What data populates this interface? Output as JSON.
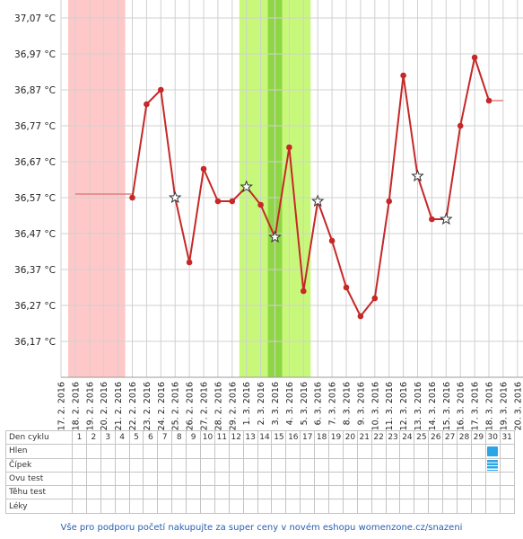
{
  "chart_data": {
    "type": "line",
    "y_unit_suffix": "°C",
    "ylim": [
      36.07,
      37.12
    ],
    "yticks": [
      37.07,
      36.97,
      36.87,
      36.77,
      36.67,
      36.57,
      36.47,
      36.37,
      36.27,
      36.17
    ],
    "ytick_labels": [
      "37,07 °C",
      "36,97 °C",
      "36,87 °C",
      "36,77 °C",
      "36,67 °C",
      "36,57 °C",
      "36,47 °C",
      "36,37 °C",
      "36,27 °C",
      "36,17 °C"
    ],
    "x": [
      "17. 2. 2016",
      "18. 2. 2016",
      "19. 2. 2016",
      "20. 2. 2016",
      "21. 2. 2016",
      "22. 2. 2016",
      "23. 2. 2016",
      "24. 2. 2016",
      "25. 2. 2016",
      "26. 2. 2016",
      "27. 2. 2016",
      "28. 2. 2016",
      "29. 2. 2016",
      "1. 3. 2016",
      "2. 3. 2016",
      "3. 3. 2016",
      "4. 3. 2016",
      "5. 3. 2016",
      "6. 3. 2016",
      "7. 3. 2016",
      "8. 3. 2016",
      "9. 3. 2016",
      "10. 3. 2016",
      "11. 3. 2016",
      "12. 3. 2016",
      "13. 3. 2016",
      "14. 3. 2016",
      "15. 3. 2016",
      "16. 3. 2016",
      "17. 3. 2016",
      "18. 3. 2016",
      "19. 3. 2016",
      "20. 3. 2016"
    ],
    "series": [
      {
        "color": "#c62828",
        "points": [
          {
            "x": "22. 2. 2016",
            "y": 36.57,
            "marker": "dot"
          },
          {
            "x": "23. 2. 2016",
            "y": 36.83,
            "marker": "dot"
          },
          {
            "x": "24. 2. 2016",
            "y": 36.87,
            "marker": "dot"
          },
          {
            "x": "25. 2. 2016",
            "y": 36.57,
            "marker": "star"
          },
          {
            "x": "26. 2. 2016",
            "y": 36.39,
            "marker": "dot"
          },
          {
            "x": "27. 2. 2016",
            "y": 36.65,
            "marker": "dot"
          },
          {
            "x": "28. 2. 2016",
            "y": 36.56,
            "marker": "dot"
          },
          {
            "x": "29. 2. 2016",
            "y": 36.56,
            "marker": "dot"
          },
          {
            "x": "1. 3. 2016",
            "y": 36.6,
            "marker": "star"
          },
          {
            "x": "2. 3. 2016",
            "y": 36.55,
            "marker": "dot"
          },
          {
            "x": "3. 3. 2016",
            "y": 36.46,
            "marker": "star"
          },
          {
            "x": "4. 3. 2016",
            "y": 36.71,
            "marker": "dot"
          },
          {
            "x": "5. 3. 2016",
            "y": 36.31,
            "marker": "dot"
          },
          {
            "x": "6. 3. 2016",
            "y": 36.56,
            "marker": "star"
          },
          {
            "x": "7. 3. 2016",
            "y": 36.45,
            "marker": "dot"
          },
          {
            "x": "8. 3. 2016",
            "y": 36.32,
            "marker": "dot"
          },
          {
            "x": "9. 3. 2016",
            "y": 36.24,
            "marker": "dot"
          },
          {
            "x": "10. 3. 2016",
            "y": 36.29,
            "marker": "dot"
          },
          {
            "x": "11. 3. 2016",
            "y": 36.56,
            "marker": "dot"
          },
          {
            "x": "12. 3. 2016",
            "y": 36.91,
            "marker": "dot"
          },
          {
            "x": "13. 3. 2016",
            "y": 36.63,
            "marker": "star"
          },
          {
            "x": "14. 3. 2016",
            "y": 36.51,
            "marker": "dot"
          },
          {
            "x": "15. 3. 2016",
            "y": 36.51,
            "marker": "star"
          },
          {
            "x": "16. 3. 2016",
            "y": 36.77,
            "marker": "dot"
          },
          {
            "x": "17. 3. 2016",
            "y": 36.96,
            "marker": "dot"
          },
          {
            "x": "18. 3. 2016",
            "y": 36.84,
            "marker": "dot"
          }
        ]
      }
    ],
    "reference_lines": [
      {
        "from": "18. 2. 2016",
        "to": "22. 2. 2016",
        "y": 36.58,
        "color": "#e08080"
      },
      {
        "from": "18. 3. 2016",
        "to": "19. 3. 2016",
        "y": 36.84,
        "color": "#e08080"
      }
    ],
    "bands": [
      {
        "from": "18. 2. 2016",
        "to": "21. 2. 2016",
        "color": "#ffc8c8"
      },
      {
        "from": "1. 3. 2016",
        "to": "5. 3. 2016",
        "color": "#c8f87a"
      },
      {
        "from": "3. 3. 2016",
        "to": "3. 3. 2016",
        "color": "#8fd645"
      }
    ],
    "grid": true
  },
  "table": {
    "header_label": "Den cyklu",
    "days": [
      "1",
      "2",
      "3",
      "4",
      "5",
      "6",
      "7",
      "8",
      "9",
      "10",
      "11",
      "12",
      "13",
      "14",
      "15",
      "16",
      "17",
      "18",
      "19",
      "20",
      "21",
      "22",
      "23",
      "24",
      "25",
      "26",
      "27",
      "28",
      "29",
      "30",
      "31"
    ],
    "rows": [
      {
        "label": "Hlen",
        "marks": [
          {
            "day": "30",
            "kind": "hlen"
          }
        ]
      },
      {
        "label": "Čípek",
        "marks": [
          {
            "day": "30",
            "kind": "cipek"
          }
        ]
      },
      {
        "label": "Ovu test",
        "marks": []
      },
      {
        "label": "Těhu test",
        "marks": []
      },
      {
        "label": "Léky",
        "marks": []
      }
    ]
  },
  "footer": {
    "text": "Vše pro podporu početí nakupujte za super ceny v novém eshopu womenzone.cz/snazeni"
  },
  "colors": {
    "line": "#c62828",
    "marker_fill": "#c62828",
    "star_stroke": "#333333",
    "grid": "#d0d0d0",
    "mark": "#2aa5e8"
  }
}
